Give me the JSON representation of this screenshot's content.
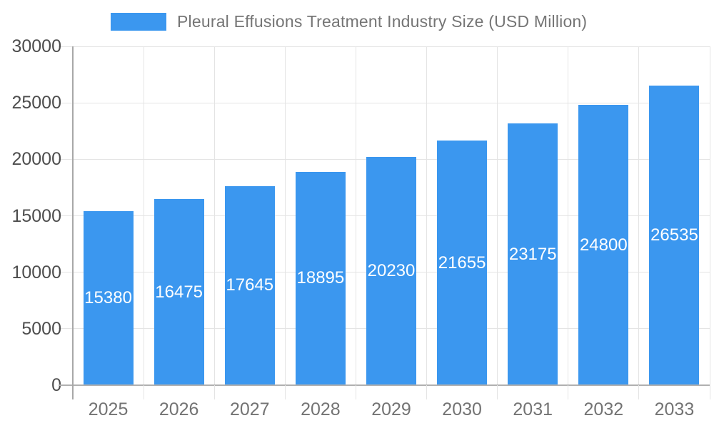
{
  "legend": {
    "label": "Pleural Effusions Treatment Industry Size (USD Million)"
  },
  "chart_data": {
    "type": "bar",
    "title": "Pleural Effusions Treatment Industry Size (USD Million)",
    "categories": [
      "2025",
      "2026",
      "2027",
      "2028",
      "2029",
      "2030",
      "2031",
      "2032",
      "2033"
    ],
    "values": [
      15380,
      16475,
      17645,
      18895,
      20230,
      21655,
      23175,
      24800,
      26535
    ],
    "series": [
      {
        "name": "Pleural Effusions Treatment Industry Size (USD Million)",
        "values": [
          15380,
          16475,
          17645,
          18895,
          20230,
          21655,
          23175,
          24800,
          26535
        ]
      }
    ],
    "xlabel": "",
    "ylabel": "",
    "ylim": [
      0,
      30000
    ],
    "yticks": [
      0,
      5000,
      10000,
      15000,
      20000,
      25000,
      30000
    ],
    "grid": true,
    "legend_position": "top",
    "value_label_position": "inside-center"
  },
  "colors": {
    "bar": "#3b97ef",
    "gridline": "#e4e4e4",
    "axis_line": "#b0b0b0",
    "y_axis_line": "#a8a8a8",
    "y_tick_label": "#4d4d4d",
    "x_tick_label": "#737373",
    "title": "#757575",
    "value_label": "#ffffff",
    "background": "#ffffff"
  }
}
